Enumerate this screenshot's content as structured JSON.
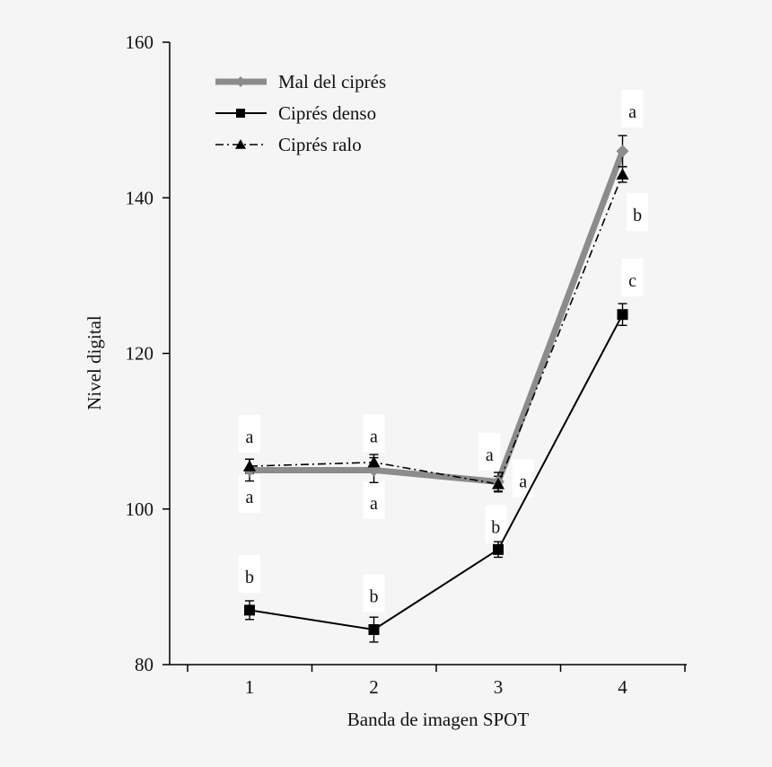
{
  "chart_data": {
    "type": "line",
    "title": "",
    "xlabel": "Banda de imagen SPOT",
    "ylabel": "Nivel digital",
    "categories": [
      "1",
      "2",
      "3",
      "4"
    ],
    "yticks": [
      "80",
      "100",
      "120",
      "140",
      "160"
    ],
    "ylim": [
      80,
      160
    ],
    "grid": false,
    "legend_position": "top-left",
    "series": [
      {
        "name": "Mal del ciprés",
        "style": "thick-gray-diamond",
        "color": "#8c8c8c",
        "values": [
          105,
          105,
          103.5,
          146
        ],
        "errors": [
          1.4,
          1.6,
          1.2,
          2.0
        ]
      },
      {
        "name": "Ciprés denso",
        "style": "solid-square",
        "color": "#000000",
        "values": [
          87,
          84.5,
          94.8,
          125
        ],
        "errors": [
          1.2,
          1.6,
          1.0,
          1.4
        ]
      },
      {
        "name": "Ciprés ralo",
        "style": "dashdot-triangle",
        "color": "#000000",
        "values": [
          105.5,
          106,
          103.2,
          143
        ],
        "errors": [
          0.9,
          1.0,
          1.0,
          1.0
        ]
      }
    ],
    "annotations": [
      {
        "text": "a",
        "x": 1,
        "y": 108.5
      },
      {
        "text": "a",
        "x": 1,
        "y": 100.8
      },
      {
        "text": "b",
        "x": 1,
        "y": 90.5
      },
      {
        "text": "a",
        "x": 2,
        "y": 108.6
      },
      {
        "text": "a",
        "x": 2,
        "y": 100.0
      },
      {
        "text": "b",
        "x": 2,
        "y": 88.0
      },
      {
        "text": "a",
        "x": 2.93,
        "y": 106.2
      },
      {
        "text": "a",
        "x": 3.2,
        "y": 102.8
      },
      {
        "text": "b",
        "x": 2.98,
        "y": 96.9
      },
      {
        "text": "a",
        "x": 4.08,
        "y": 150.3
      },
      {
        "text": "b",
        "x": 4.12,
        "y": 137.0
      },
      {
        "text": "c",
        "x": 4.08,
        "y": 128.6
      }
    ]
  }
}
